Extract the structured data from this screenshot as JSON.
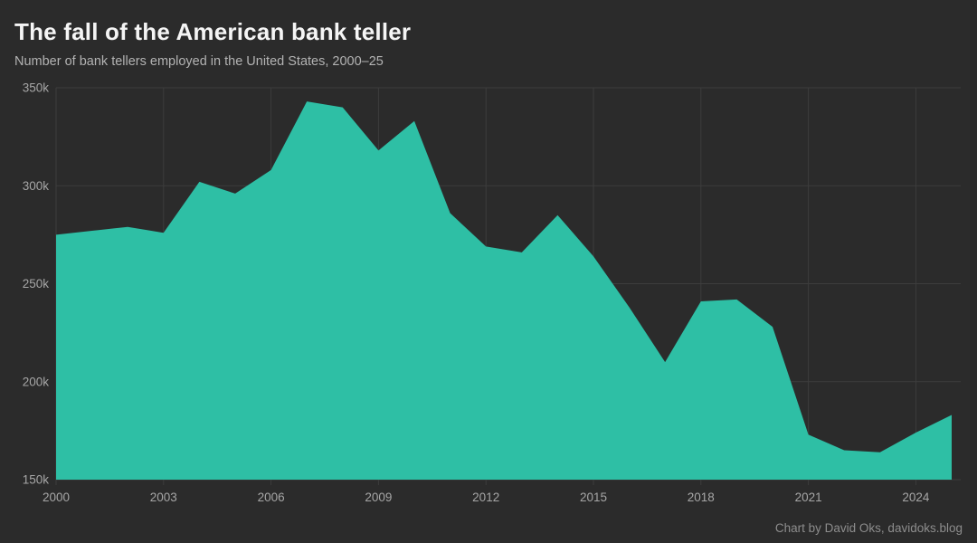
{
  "header": {
    "title": "The fall of the American bank teller",
    "subtitle": "Number of bank tellers employed in the United States, 2000–25"
  },
  "footer": {
    "credit": "Chart by David Oks, davidoks.blog"
  },
  "colors": {
    "background": "#2b2b2b",
    "area": "#2ebfa5",
    "gridline": "#3d3d3d",
    "axis_labels": "#a6a6a6",
    "title": "#f5f5f5",
    "subtitle": "#b3b3b3",
    "credit": "#8d8d8d"
  },
  "chart_data": {
    "type": "area",
    "title": "The fall of the American bank teller",
    "subtitle": "Number of bank tellers employed in the United States, 2000–25",
    "series_name": "Bank tellers employed",
    "unit": "thousands of employees",
    "x": [
      2000,
      2001,
      2002,
      2003,
      2004,
      2005,
      2006,
      2007,
      2008,
      2009,
      2010,
      2011,
      2012,
      2013,
      2014,
      2015,
      2016,
      2017,
      2018,
      2019,
      2020,
      2021,
      2022,
      2023,
      2024,
      2025
    ],
    "values_thousands": [
      275,
      277,
      279,
      276,
      302,
      296,
      308,
      343,
      340,
      318,
      333,
      286,
      269,
      266,
      285,
      264,
      238,
      210,
      241,
      242,
      228,
      173,
      165,
      164,
      174,
      183
    ],
    "xlim": [
      2000,
      2025
    ],
    "ylim_thousands": [
      150,
      350
    ],
    "x_tick_years": [
      2000,
      2003,
      2006,
      2009,
      2012,
      2015,
      2018,
      2021,
      2024
    ],
    "y_ticks": [
      {
        "value": 150,
        "label": "150k"
      },
      {
        "value": 200,
        "label": "200k"
      },
      {
        "value": 250,
        "label": "250k"
      },
      {
        "value": 300,
        "label": "300k"
      },
      {
        "value": 350,
        "label": "350k"
      }
    ],
    "grid": true,
    "legend": false,
    "area_color": "#2ebfa5",
    "background_color": "#2b2b2b"
  }
}
